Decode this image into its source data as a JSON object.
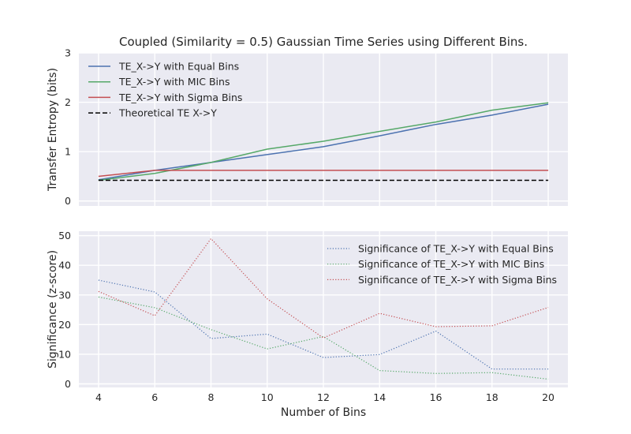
{
  "chart_data": [
    {
      "type": "line",
      "title": "Coupled (Similarity = 0.5) Gaussian Time Series using Different Bins.",
      "xlabel": "",
      "ylabel": "Transfer Entropy (bits)",
      "x": [
        4,
        6,
        8,
        10,
        12,
        14,
        16,
        18,
        20
      ],
      "xlim": [
        3.3,
        20.7
      ],
      "ylim": [
        -0.1,
        3
      ],
      "yticks": [
        0,
        1,
        2,
        3
      ],
      "grid": true,
      "legend": "top-left",
      "series": [
        {
          "name": "TE_X->Y with Equal Bins",
          "color": "#4c72b0",
          "style": "solid",
          "values": [
            0.43,
            0.62,
            0.78,
            0.94,
            1.1,
            1.32,
            1.55,
            1.74,
            1.96
          ]
        },
        {
          "name": "TE_X->Y with MIC Bins",
          "color": "#55a868",
          "style": "solid",
          "values": [
            0.42,
            0.56,
            0.78,
            1.05,
            1.21,
            1.41,
            1.6,
            1.84,
            1.99
          ]
        },
        {
          "name": "TE_X->Y with Sigma Bins",
          "color": "#c44e52",
          "style": "solid",
          "values": [
            0.5,
            0.62,
            0.62,
            0.62,
            0.62,
            0.62,
            0.62,
            0.62,
            0.62
          ]
        },
        {
          "name": "Theoretical TE X->Y",
          "color": "#000000",
          "style": "dashed",
          "values": [
            0.42,
            0.42,
            0.42,
            0.42,
            0.42,
            0.42,
            0.42,
            0.42,
            0.42
          ]
        }
      ]
    },
    {
      "type": "line",
      "title": "",
      "xlabel": "Number of Bins",
      "ylabel": "Significance (z-score)",
      "x": [
        4,
        6,
        8,
        10,
        12,
        14,
        16,
        18,
        20
      ],
      "xticks": [
        4,
        6,
        8,
        10,
        12,
        14,
        16,
        18,
        20
      ],
      "xlim": [
        3.3,
        20.7
      ],
      "ylim": [
        -1.2,
        51.5
      ],
      "yticks": [
        0,
        10,
        20,
        30,
        40,
        50
      ],
      "grid": true,
      "legend": "top-right",
      "series": [
        {
          "name": "Significance of TE_X->Y with Equal Bins",
          "color": "#4c72b0",
          "style": "dotted",
          "values": [
            35,
            31,
            15.3,
            16.8,
            8.9,
            9.9,
            17.8,
            5,
            5
          ]
        },
        {
          "name": "Significance of TE_X->Y with MIC Bins",
          "color": "#55a868",
          "style": "dotted",
          "values": [
            29.3,
            25.7,
            18.3,
            11.8,
            16,
            4.5,
            3.5,
            3.8,
            1.6
          ]
        },
        {
          "name": "Significance of TE_X->Y with Sigma Bins",
          "color": "#c44e52",
          "style": "dotted",
          "values": [
            31.2,
            23,
            49,
            28.7,
            15.5,
            23.8,
            19.3,
            19.6,
            25.8
          ]
        }
      ]
    }
  ]
}
